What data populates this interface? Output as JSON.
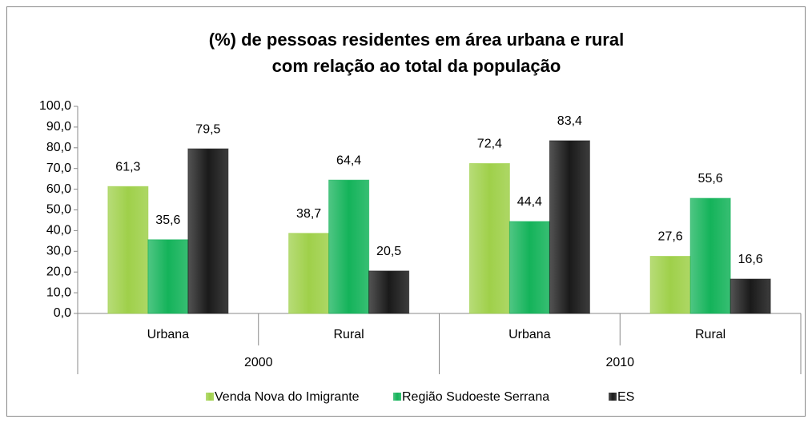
{
  "chart_data": {
    "type": "bar",
    "title": [
      "(%) de pessoas residentes em área urbana e rural",
      "com relação ao total da população"
    ],
    "categories": [
      "Urbana",
      "Rural",
      "Urbana",
      "Rural"
    ],
    "groups": [
      "2000",
      "2010"
    ],
    "series": [
      {
        "name": "Venda Nova do Imigrante",
        "color": "#9fd04a",
        "values": [
          61.3,
          38.7,
          72.4,
          27.6
        ],
        "value_labels": [
          "61,3",
          "38,7",
          "72,4",
          "27,6"
        ]
      },
      {
        "name": "Região Sudoeste Serrana",
        "color": "#14b35a",
        "values": [
          35.6,
          64.4,
          44.4,
          55.6
        ],
        "value_labels": [
          "35,6",
          "64,4",
          "44,4",
          "55,6"
        ]
      },
      {
        "name": "ES",
        "color": "#1a1a1a",
        "values": [
          79.5,
          20.5,
          83.4,
          16.6
        ],
        "value_labels": [
          "79,5",
          "20,5",
          "83,4",
          "16,6"
        ]
      }
    ],
    "ylim": [
      0,
      100
    ],
    "yticks": [
      {
        "value": 0,
        "label": "0,0"
      },
      {
        "value": 10,
        "label": "10,0"
      },
      {
        "value": 20,
        "label": "20,0"
      },
      {
        "value": 30,
        "label": "30,0"
      },
      {
        "value": 40,
        "label": "40,0"
      },
      {
        "value": 50,
        "label": "50,0"
      },
      {
        "value": 60,
        "label": "60,0"
      },
      {
        "value": 70,
        "label": "70,0"
      },
      {
        "value": 80,
        "label": "80,0"
      },
      {
        "value": 90,
        "label": "90,0"
      },
      {
        "value": 100,
        "label": "100,0"
      }
    ],
    "legend": "bottom"
  }
}
